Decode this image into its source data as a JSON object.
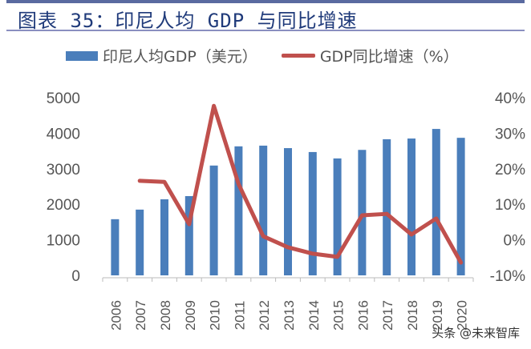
{
  "title": "图表 35：印尼人均 GDP 与同比增速",
  "watermark": "头条 @未来智库",
  "chart_data": {
    "type": "bar+line",
    "categories": [
      "2006",
      "2007",
      "2008",
      "2009",
      "2010",
      "2011",
      "2012",
      "2013",
      "2014",
      "2015",
      "2016",
      "2017",
      "2018",
      "2019",
      "2020"
    ],
    "series": [
      {
        "name": "印尼人均GDP（美元）",
        "type": "bar",
        "axis": "left",
        "color": "#4a7ebb",
        "values": [
          1580,
          1850,
          2140,
          2230,
          3090,
          3630,
          3650,
          3580,
          3470,
          3290,
          3530,
          3830,
          3850,
          4120,
          3870
        ]
      },
      {
        "name": "GDP同比增速（%）",
        "type": "line",
        "axis": "right",
        "color": "#c0504d",
        "values": [
          null,
          16.6,
          16.3,
          4.4,
          37.7,
          15.7,
          1.0,
          -2.1,
          -3.9,
          -4.8,
          6.9,
          7.3,
          1.5,
          6.0,
          -6.4
        ]
      }
    ],
    "y_left": {
      "ylim": [
        0,
        5000
      ],
      "ticks": [
        "0",
        "1000",
        "2000",
        "3000",
        "4000",
        "5000"
      ]
    },
    "y_right": {
      "ylim": [
        -10,
        40
      ],
      "ticks": [
        "-10%",
        "0%",
        "10%",
        "20%",
        "30%",
        "40%"
      ]
    },
    "legend": "top",
    "grid": false
  }
}
